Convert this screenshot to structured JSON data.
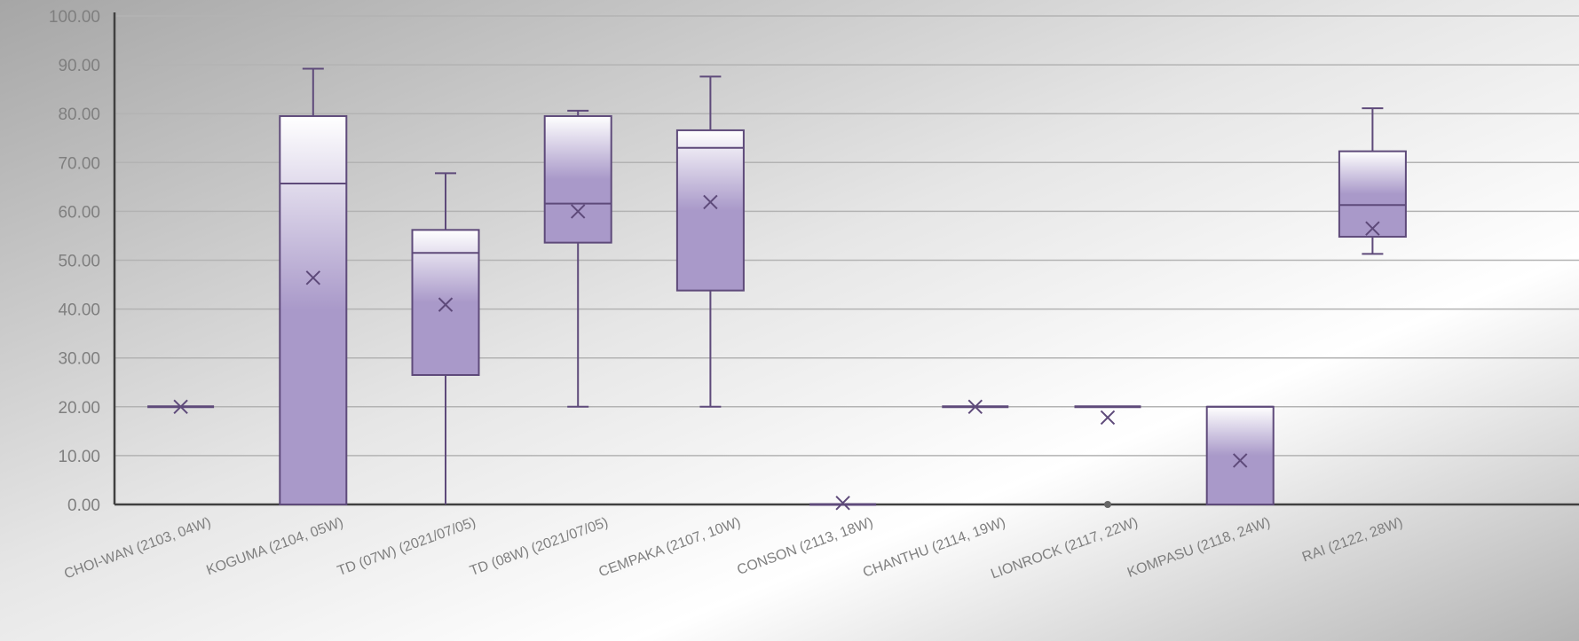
{
  "chart_data": {
    "type": "box",
    "categories": [
      "CHOI-WAN (2103, 04W)",
      "KOGUMA (2104, 05W)",
      "TD (07W) (2021/07/05)",
      "TD (08W) (2021/07/05)",
      "CEMPAKA (2107, 10W)",
      "CONSON (2113, 18W)",
      "CHANTHU (2114, 19W)",
      "LIONROCK (2117, 22W)",
      "KOMPASU (2118, 24W)",
      "RAI (2122, 28W)"
    ],
    "boxes": [
      {
        "min": 20,
        "q1": 20,
        "median": 20,
        "q3": 20,
        "max": 20,
        "mean": 20,
        "outliers": []
      },
      {
        "min": 0,
        "q1": 0,
        "median": 65.7,
        "q3": 79.5,
        "max": 89.2,
        "mean": 46.4,
        "outliers": []
      },
      {
        "min": 0,
        "q1": 26.5,
        "median": 51.5,
        "q3": 56.2,
        "max": 67.8,
        "mean": 40.9,
        "outliers": []
      },
      {
        "min": 20,
        "q1": 53.6,
        "median": 61.6,
        "q3": 79.5,
        "max": 80.6,
        "mean": 60.0,
        "outliers": []
      },
      {
        "min": 20,
        "q1": 43.8,
        "median": 73.0,
        "q3": 76.6,
        "max": 87.6,
        "mean": 61.9,
        "outliers": []
      },
      {
        "min": 0,
        "q1": 0,
        "median": 0,
        "q3": 0,
        "max": 0,
        "mean": 0.3,
        "outliers": []
      },
      {
        "min": 20,
        "q1": 20,
        "median": 20,
        "q3": 20,
        "max": 20,
        "mean": 20,
        "outliers": []
      },
      {
        "min": 20,
        "q1": 20,
        "median": 20,
        "q3": 20,
        "max": 20,
        "mean": 17.8,
        "outliers": [
          0
        ]
      },
      {
        "min": 0,
        "q1": 0,
        "median": 20,
        "q3": 20,
        "max": 20,
        "mean": 9.0,
        "outliers": []
      },
      {
        "min": 51.3,
        "q1": 54.8,
        "median": 61.3,
        "q3": 72.3,
        "max": 81.1,
        "mean": 56.5,
        "outliers": []
      }
    ],
    "yticks": [
      "0.00",
      "10.00",
      "20.00",
      "30.00",
      "40.00",
      "50.00",
      "60.00",
      "70.00",
      "80.00",
      "90.00",
      "100.00"
    ],
    "ylim": [
      0,
      100
    ],
    "grid": true,
    "title": "",
    "xlabel": "",
    "ylabel": "",
    "colors": {
      "box_stroke": "#5e4a7a",
      "box_fill_top": "#ffffff",
      "box_fill_bottom": "#a999c9",
      "grid": "#b3b3b3",
      "axis": "#404040",
      "tick_text": "#7f7f7f"
    }
  }
}
